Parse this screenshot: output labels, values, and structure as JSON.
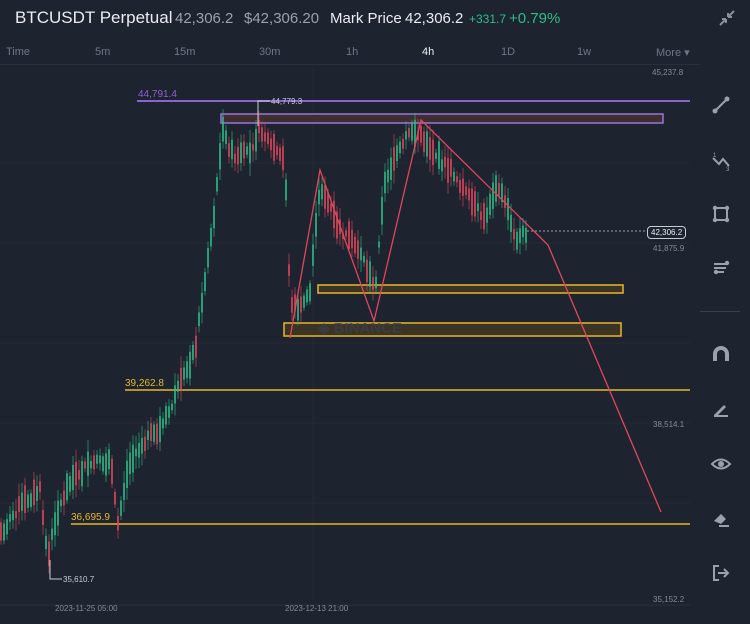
{
  "header": {
    "symbol": "BTCUSDT Perpetual",
    "last_price": "42,306.2",
    "usd_price": "$42,306.20",
    "mark_label": "Mark Price",
    "mark_price": "42,306.2",
    "change_abs": "+331.7",
    "change_pct": "+0.79%"
  },
  "intervals": [
    {
      "label": "Time"
    },
    {
      "label": "5m"
    },
    {
      "label": "15m"
    },
    {
      "label": "30m"
    },
    {
      "label": "1h"
    },
    {
      "label": "4h",
      "active": true
    },
    {
      "label": "1D"
    },
    {
      "label": "1w"
    },
    {
      "label": "More ▾"
    }
  ],
  "price_axis": {
    "labels": [
      "45,237.8",
      "41,875.9",
      "38,514.1",
      "35,152.2"
    ],
    "current_price": "42,306.2"
  },
  "time_axis": [
    "2023-11-25 05:00",
    "2023-12-13 21:00"
  ],
  "annotations": {
    "high_line": "44,791.4",
    "high_marker": "44,779.3",
    "level_1": "39,262.8",
    "level_2": "36,695.9",
    "low_marker": "35,610.7",
    "watermark": "BINANCE"
  },
  "colors": {
    "up": "#2ebd85",
    "down": "#e0475c",
    "accent_yellow": "#e5b82c",
    "purple": "#8a63d2",
    "red_line": "#e0475c",
    "bg": "#1e2330"
  },
  "tools": [
    {
      "name": "trend-line-icon"
    },
    {
      "name": "fib-tool-icon"
    },
    {
      "name": "rectangle-tool-icon"
    },
    {
      "name": "indicators-icon"
    },
    {
      "name": "magnet-icon"
    },
    {
      "name": "pencil-lock-icon"
    },
    {
      "name": "eye-icon"
    },
    {
      "name": "eraser-icon"
    },
    {
      "name": "exit-icon"
    }
  ]
}
